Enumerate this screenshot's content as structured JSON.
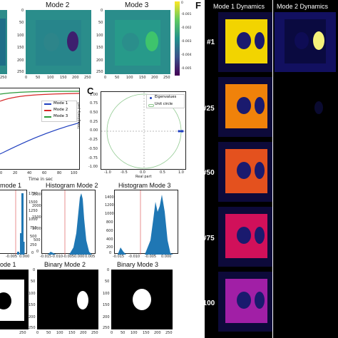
{
  "panels": {
    "mode2_title": "Mode 2",
    "mode3_title": "Mode 3",
    "colorbar_ticks": [
      "0.001",
      "0.002",
      "0.003",
      "0.004",
      "0.005"
    ],
    "colorbar_zero": "0",
    "mode_y_ticks": [
      "0",
      "50",
      "100",
      "150",
      "200",
      "250"
    ],
    "mode_x_ticks": [
      "0",
      "50",
      "100",
      "150",
      "200",
      "250"
    ],
    "left_x_ticks_partial": "250",
    "legend_b": [
      "Mode 1",
      "Mode 2",
      "Mode 3"
    ],
    "b_x_ticks": [
      "0",
      "20",
      "40",
      "60",
      "80",
      "100"
    ],
    "b_xlabel": "Time in sec",
    "c_label": "C",
    "c_legend": [
      "Eigenvalues",
      "Unit circle"
    ],
    "c_ylabel": "Imaginary part",
    "c_xlabel": "Real part",
    "c_y_ticks": [
      "1.00",
      "0.75",
      "0.50",
      "0.25",
      "0.00",
      "-0.25",
      "-0.50",
      "-0.75",
      "-1.00"
    ],
    "c_x_ticks": [
      "-1.0",
      "-0.5",
      "0.0",
      "0.5",
      "1.0"
    ],
    "hist1_title": "mode 1",
    "hist2_title": "Histogram Mode 2",
    "hist3_title": "Histogram Mode 3",
    "hist1_y_ticks": [
      "1750",
      "1500",
      "1250",
      "1000",
      "750",
      "500",
      "250",
      "0"
    ],
    "hist1_x_ticks": [
      "-0.005",
      "0.000"
    ],
    "hist2_y_ticks": [
      "2500",
      "2000",
      "1500",
      "1000",
      "500",
      "0"
    ],
    "hist2_x_ticks": [
      "-0.015",
      "-0.010",
      "-0.005",
      "0.000",
      "0.005"
    ],
    "hist3_y_ticks": [
      "1400",
      "1200",
      "1000",
      "800",
      "600",
      "400",
      "200",
      "0"
    ],
    "hist3_x_ticks": [
      "-0.015",
      "-0.010",
      "-0.005",
      "0.000"
    ],
    "bin1_title": "ode 1",
    "bin2_title": "Binary Mode 2",
    "bin3_title": "Binary Mode 3",
    "bin_y_ticks": [
      "0",
      "50",
      "100",
      "150",
      "200",
      "250"
    ],
    "bin_x_ticks": [
      "0",
      "50",
      "100",
      "150",
      "200",
      "250"
    ],
    "f_label": "F",
    "f_col1": "Mode 1 Dynamics",
    "f_col2": "Mode 2 Dynamics",
    "f_rows": [
      "#1",
      "#25",
      "#50",
      "#75",
      "#100"
    ],
    "f_colors": [
      "#f2d400",
      "#f0820a",
      "#e4511e",
      "#d1105a",
      "#a11fa6"
    ]
  }
}
